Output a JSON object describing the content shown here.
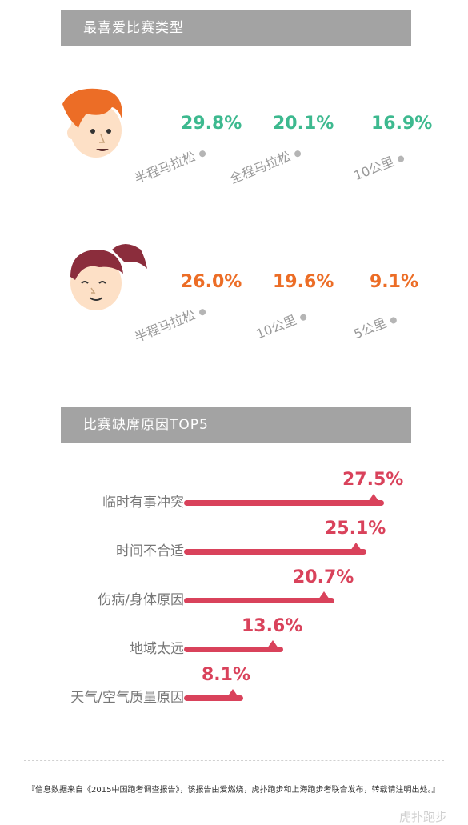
{
  "section1": {
    "title": "最喜爱比赛类型",
    "male": {
      "items": [
        {
          "percent": "29.8%",
          "label": "半程马拉松"
        },
        {
          "percent": "20.1%",
          "label": "全程马拉松"
        },
        {
          "percent": "16.9%",
          "label": "10公里"
        }
      ]
    },
    "female": {
      "items": [
        {
          "percent": "26.0%",
          "label": "半程马拉松"
        },
        {
          "percent": "19.6%",
          "label": "10公里"
        },
        {
          "percent": "9.1%",
          "label": "5公里"
        }
      ]
    }
  },
  "section2": {
    "title": "比赛缺席原因TOP5"
  },
  "chart_data": {
    "type": "bar",
    "categories": [
      "临时有事冲突",
      "时间不合适",
      "伤病/身体原因",
      "地域太远",
      "天气/空气质量原因"
    ],
    "values": [
      27.5,
      25.1,
      20.7,
      13.6,
      8.1
    ],
    "value_labels": [
      "27.5%",
      "25.1%",
      "20.7%",
      "13.6%",
      "8.1%"
    ],
    "orientation": "horizontal",
    "xlim": [
      0,
      30
    ],
    "grid": false
  },
  "colors": {
    "male_accent": "#3db98f",
    "female_accent": "#ec6d26",
    "bar": "#d9425b",
    "header_bg": "#a3a3a3"
  },
  "footer": {
    "note": "『信息数据来自《2015中国跑者调查报告》，该报告由爱燃烧，虎扑跑步和上海跑步者联合发布，转载请注明出处。』",
    "watermark": "虎扑跑步"
  }
}
